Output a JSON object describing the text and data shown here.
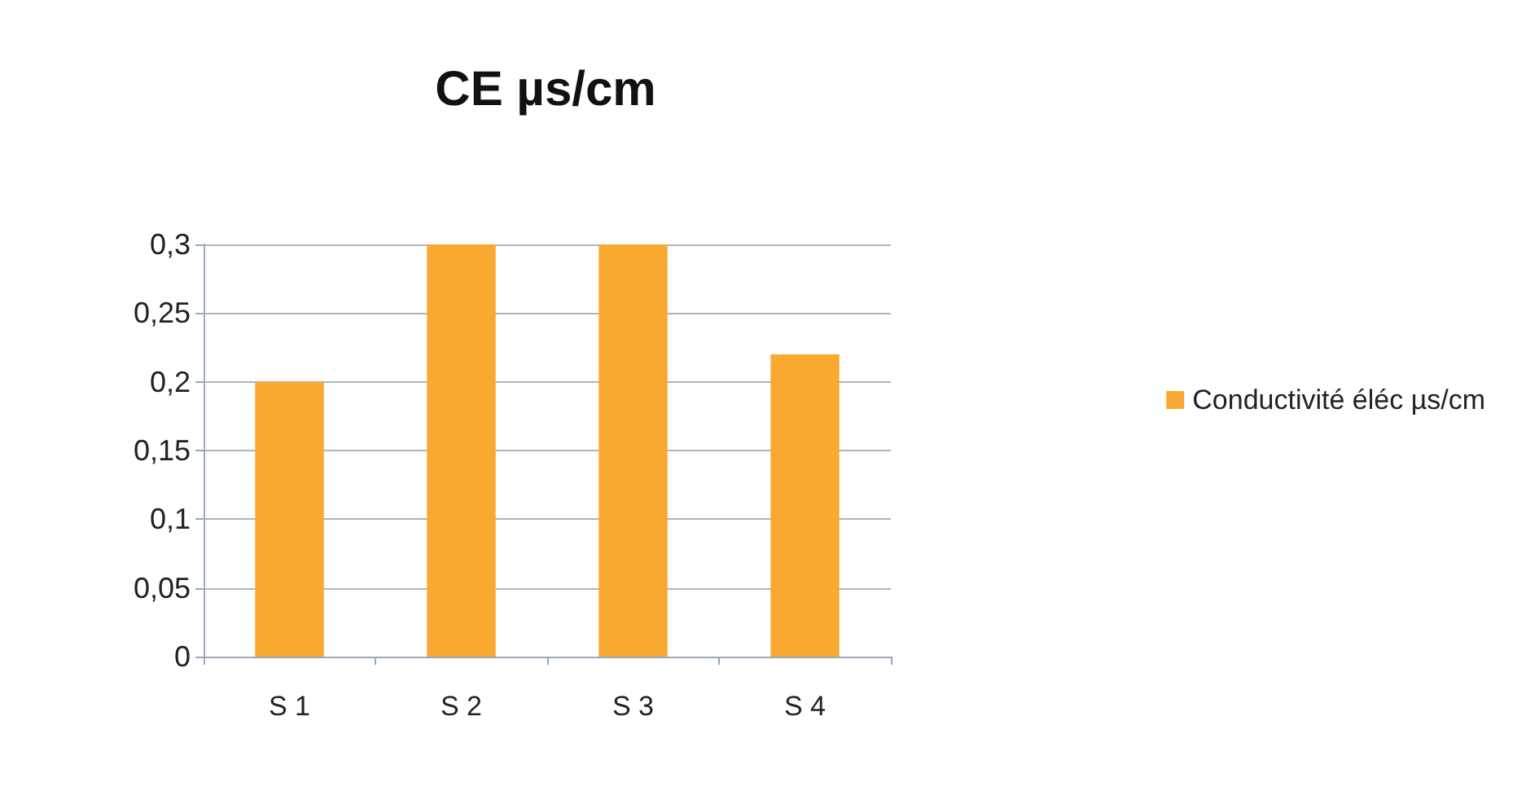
{
  "chart_data": {
    "type": "bar",
    "title": "CE µs/cm",
    "categories": [
      "S 1",
      "S 2",
      "S 3",
      "S 4"
    ],
    "series": [
      {
        "name": "Conductivité éléc µs/cm",
        "color": "#f9a832",
        "values": [
          0.2,
          0.3,
          0.3,
          0.22
        ]
      }
    ],
    "ylim": [
      0,
      0.3
    ],
    "yticks": [
      {
        "value": 0,
        "label": "0"
      },
      {
        "value": 0.05,
        "label": "0,05"
      },
      {
        "value": 0.1,
        "label": "0,1"
      },
      {
        "value": 0.15,
        "label": "0,15"
      },
      {
        "value": 0.2,
        "label": "0,2"
      },
      {
        "value": 0.25,
        "label": "0,25"
      },
      {
        "value": 0.3,
        "label": "0,3"
      }
    ],
    "grid": "y",
    "legend": "right"
  }
}
